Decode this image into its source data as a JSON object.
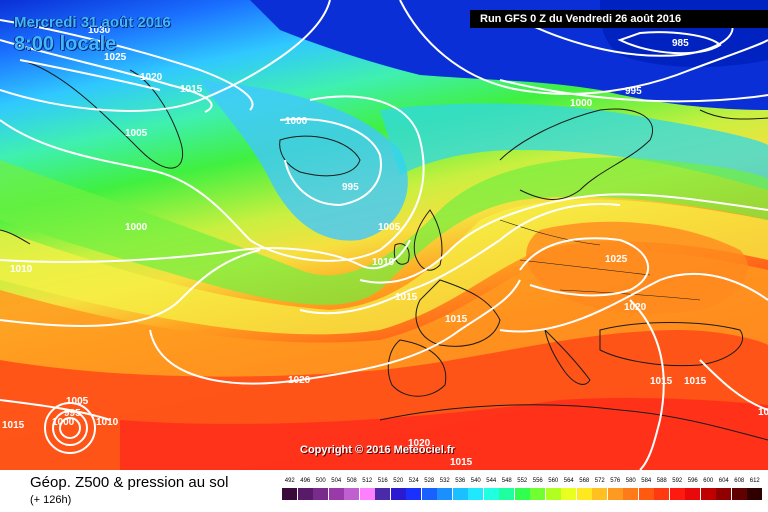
{
  "header": {
    "date_line1": "Mercredi 31 août 2016",
    "date_line2": "8:00 locale",
    "run_info": "Run GFS 0 Z du Vendredi 26 août 2016"
  },
  "map": {
    "isobar_labels": [
      "1030",
      "1025",
      "1020",
      "1015",
      "1005",
      "1005",
      "1000",
      "985",
      "995",
      "1000",
      "1000",
      "995",
      "1005",
      "1010",
      "1010",
      "1015",
      "1015",
      "1025",
      "1020",
      "1020",
      "1015",
      "1015",
      "1015",
      "1005",
      "995",
      "1000",
      "1010",
      "1015",
      "1020",
      "1015"
    ],
    "low_center_label": "995",
    "colors": {
      "deep_blue": "#0a2fd6",
      "cyan": "#3fd0ff",
      "green": "#3ff03a",
      "yellow": "#f6f046",
      "orange": "#ff8a1e",
      "red": "#ff2a1a",
      "isobar": "#ffffff",
      "coast": "#1a1a1a"
    }
  },
  "copyright": "Copyright © 2016 Meteociel.fr",
  "legend": {
    "title": "Géop. Z500 & pression au sol",
    "lead_time": "(+ 126h)",
    "scale_labels": [
      "492",
      "496",
      "500",
      "504",
      "508",
      "512",
      "516",
      "520",
      "524",
      "528",
      "532",
      "536",
      "540",
      "544",
      "548",
      "552",
      "556",
      "560",
      "564",
      "568",
      "572",
      "576",
      "580",
      "584",
      "588",
      "592",
      "596",
      "600",
      "604",
      "608",
      "612"
    ],
    "scale_colors": [
      "#3a0a3a",
      "#5a1a6a",
      "#7a2a8a",
      "#9a3aa8",
      "#c060d0",
      "#ff80ff",
      "#4a2aa8",
      "#2a1ad0",
      "#1a30ff",
      "#1a60ff",
      "#1a90ff",
      "#1ac0ff",
      "#20e8ff",
      "#20ffe0",
      "#20ffa0",
      "#30ff50",
      "#70ff30",
      "#b0ff20",
      "#e8ff20",
      "#ffe820",
      "#ffc020",
      "#ff9a20",
      "#ff7a18",
      "#ff5a10",
      "#ff3a10",
      "#ff1a10",
      "#e80a0a",
      "#c00000",
      "#900000",
      "#600000",
      "#300000"
    ]
  }
}
